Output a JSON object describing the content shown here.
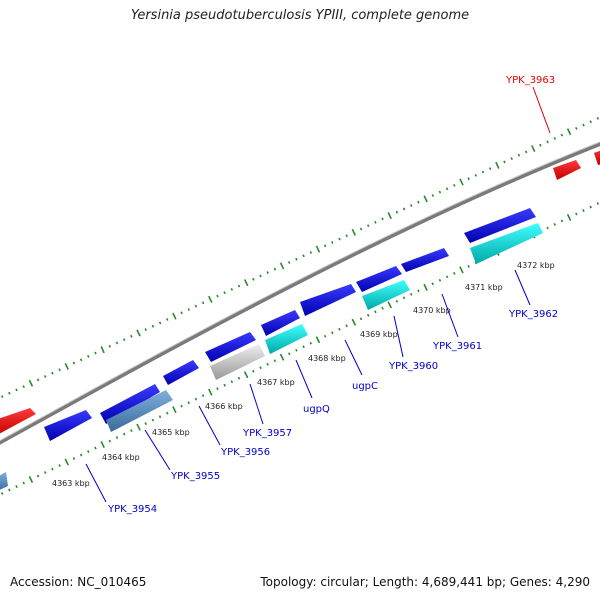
{
  "title": "Yersinia pseudotuberculosis YPIII, complete genome",
  "footer": {
    "accession": "Accession: NC_010465",
    "summary": "Topology: circular; Length: 4,689,441 bp; Genes: 4,290"
  },
  "colors": {
    "backbone": "#808080",
    "forward_gene": "#0000e0",
    "highlight_gene": "#e00000",
    "reverse_gene": "#00d8d8",
    "reverse_gene_dark": "#5b8fbf",
    "pseudo_gene": "#c8c8c8",
    "ticks": "#2a8a2a",
    "gene_label": "#0000c8",
    "highlight_label": "#e00000"
  },
  "scale_labels": [
    "4363 kbp",
    "4364 kbp",
    "4365 kbp",
    "4366 kbp",
    "4367 kbp",
    "4368 kbp",
    "4369 kbp",
    "4370 kbp",
    "4371 kbp",
    "4372 kbp"
  ],
  "gene_labels": [
    {
      "text": "YPK_3963",
      "highlight": true
    },
    {
      "text": "YPK_3954",
      "highlight": false
    },
    {
      "text": "YPK_3955",
      "highlight": false
    },
    {
      "text": "YPK_3956",
      "highlight": false
    },
    {
      "text": "YPK_3957",
      "highlight": false
    },
    {
      "text": "ugpQ",
      "highlight": false
    },
    {
      "text": "ugpC",
      "highlight": false
    },
    {
      "text": "YPK_3960",
      "highlight": false
    },
    {
      "text": "YPK_3961",
      "highlight": false
    },
    {
      "text": "YPK_3962",
      "highlight": false
    }
  ]
}
